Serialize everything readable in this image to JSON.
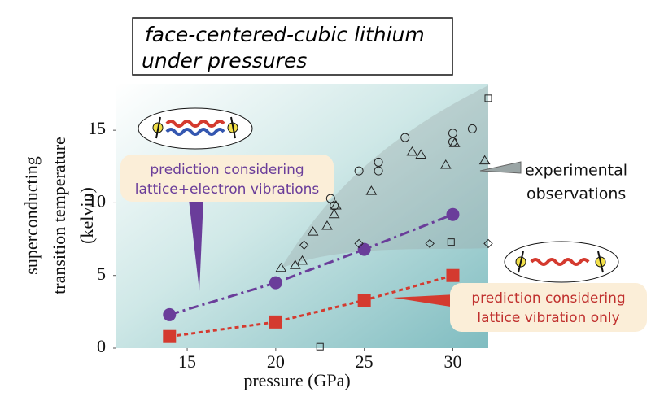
{
  "chart_data": {
    "type": "scatter",
    "title": [
      "face-centered-cubic lithium",
      "under pressures"
    ],
    "x_label": "pressure (GPa)",
    "y_label": [
      "superconducting",
      "transition temperature",
      "(kelvin)"
    ],
    "xlim": [
      11,
      32
    ],
    "ylim": [
      0,
      18.2
    ],
    "xticks": [
      15,
      20,
      25,
      30
    ],
    "yticks": [
      0,
      5,
      10,
      15
    ],
    "annotations": [
      [
        "prediction considering",
        "lattice+electron vibrations"
      ],
      [
        "experimental",
        "observations"
      ],
      [
        "prediction considering",
        "lattice vibration only"
      ]
    ],
    "series": [
      {
        "color": "#6a3d9a",
        "style": "dashdot",
        "marker": "circle-filled",
        "x": [
          14,
          20,
          25,
          30
        ],
        "values": [
          2.3,
          4.5,
          6.8,
          9.2
        ]
      },
      {
        "color": "#d43a2f",
        "style": "dotted",
        "marker": "square-filled",
        "x": [
          14,
          20,
          25,
          30
        ],
        "values": [
          0.8,
          1.8,
          3.3,
          5.0
        ]
      },
      {
        "color": "#222222",
        "marker": "triangle",
        "x": [
          20.3,
          21.1,
          21.5,
          22.1,
          22.9,
          23.3,
          23.4,
          25.4,
          27.7,
          28.2,
          29.6,
          30.1,
          31.8
        ],
        "values": [
          5.5,
          5.7,
          6.0,
          8.0,
          8.4,
          9.2,
          9.8,
          10.8,
          13.5,
          13.3,
          12.6,
          14.1,
          12.9
        ]
      },
      {
        "color": "#222222",
        "marker": "circle",
        "x": [
          23.1,
          23.3,
          24.7,
          25.8,
          25.8,
          27.3,
          30.0,
          30.0,
          31.1
        ],
        "values": [
          10.3,
          9.8,
          12.2,
          12.8,
          12.2,
          14.5,
          14.8,
          14.2,
          15.1
        ]
      },
      {
        "color": "#222222",
        "marker": "diamond",
        "x": [
          21.6,
          24.7,
          28.7,
          32.0
        ],
        "values": [
          7.1,
          7.2,
          7.2,
          7.2
        ]
      },
      {
        "color": "#222222",
        "marker": "square",
        "x": [
          22.5,
          29.9,
          32.0
        ],
        "values": [
          0.1,
          7.3,
          17.2
        ]
      }
    ]
  }
}
